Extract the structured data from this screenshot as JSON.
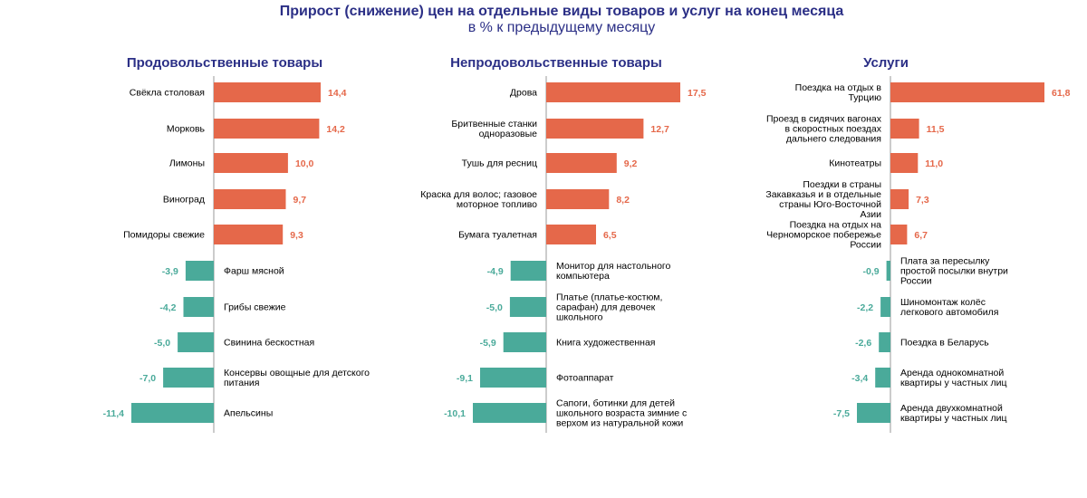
{
  "header": {
    "title": "Прирост (снижение) цен на отдельные виды товаров и услуг на конец месяца",
    "subtitle": "в % к предыдущему месяцу"
  },
  "colors": {
    "positive": "#e5684a",
    "negative": "#4aaa9a",
    "title": "#2b2f86",
    "axis": "#999999",
    "text": "#000000"
  },
  "chart_data": [
    {
      "type": "bar",
      "orientation": "horizontal",
      "title": "Продовольственные товары",
      "categories": [
        "Свёкла столовая",
        "Морковь",
        "Лимоны",
        "Виноград",
        "Помидоры свежие",
        "Фарш мясной",
        "Грибы свежие",
        "Свинина бескостная",
        "Консервы овощные для детского питания",
        "Апельсины"
      ],
      "values": [
        14.4,
        14.2,
        10.0,
        9.7,
        9.3,
        -3.9,
        -4.2,
        -5.0,
        -7.0,
        -11.4
      ],
      "labels": [
        "14,4",
        "14,2",
        "10,0",
        "9,7",
        "9,3",
        "-3,9",
        "-4,2",
        "-5,0",
        "-7,0",
        "-11,4"
      ]
    },
    {
      "type": "bar",
      "orientation": "horizontal",
      "title": "Непродовольственные товары",
      "categories": [
        "Дрова",
        "Бритвенные станки одноразовые",
        "Тушь для ресниц",
        "Краска для волос; газовое моторное топливо",
        "Бумага туалетная",
        "Монитор для настольного компьютера",
        "Платье (платье-костюм, сарафан) для девочек школьного",
        "Книга художественная",
        "Фотоаппарат",
        "Сапоги, ботинки для детей школьного возраста зимние с верхом из натуральной кожи"
      ],
      "values": [
        17.5,
        12.7,
        9.2,
        8.2,
        6.5,
        -4.9,
        -5.0,
        -5.9,
        -9.1,
        -10.1
      ],
      "labels": [
        "17,5",
        "12,7",
        "9,2",
        "8,2",
        "6,5",
        "-4,9",
        "-5,0",
        "-5,9",
        "-9,1",
        "-10,1"
      ]
    },
    {
      "type": "bar",
      "orientation": "horizontal",
      "title": "Услуги",
      "categories": [
        "Поездка на отдых в Турцию",
        "Проезд в сидячих вагонах в скоростных поездах дальнего следования",
        "Кинотеатры",
        "Поездки в страны Закавказья и в отдельные страны Юго-Восточной Азии",
        "Поездка на отдых на Черноморское побережье России",
        "Плата за пересылку простой посылки внутри России",
        "Шиномонтаж колёс легкового автомобиля",
        "Поездка в Беларусь",
        "Аренда однокомнатной квартиры у частных лиц",
        "Аренда двухкомнатной квартиры у частных лиц"
      ],
      "values": [
        61.8,
        11.5,
        11.0,
        7.3,
        6.7,
        -0.9,
        -2.2,
        -2.6,
        -3.4,
        -7.5
      ],
      "labels": [
        "61,8",
        "11,5",
        "11,0",
        "7,3",
        "6,7",
        "-0,9",
        "-2,2",
        "-2,6",
        "-3,4",
        "-7,5"
      ]
    }
  ]
}
